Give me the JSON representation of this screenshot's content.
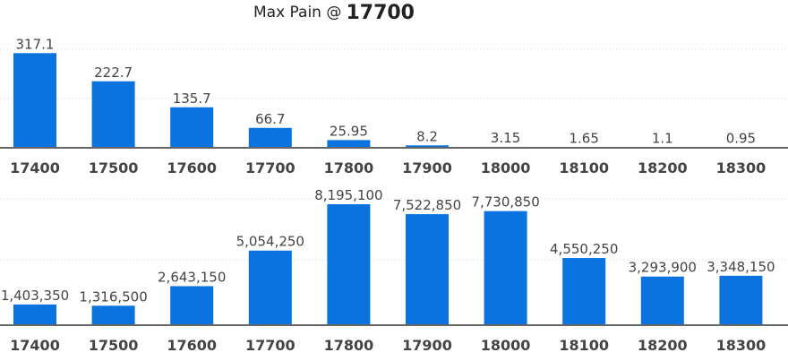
{
  "header": {
    "prefix": "Max Pain @",
    "strike": "17700"
  },
  "chart_data": [
    {
      "type": "bar",
      "title": "Max Pain @ 17700",
      "categories": [
        "17400",
        "17500",
        "17600",
        "17700",
        "17800",
        "17900",
        "18000",
        "18100",
        "18200",
        "18300"
      ],
      "values": [
        317.1,
        222.7,
        135.7,
        66.7,
        25.95,
        8.2,
        3.15,
        1.65,
        1.1,
        0.95
      ],
      "labels": [
        "317.1",
        "222.7",
        "135.7",
        "66.7",
        "25.95",
        "8.2",
        "3.15",
        "1.65",
        "1.1",
        "0.95"
      ],
      "ylim": [
        0,
        450
      ],
      "grid": true,
      "bar_color": "#0b73e0"
    },
    {
      "type": "bar",
      "categories": [
        "17400",
        "17500",
        "17600",
        "17700",
        "17800",
        "17900",
        "18000",
        "18100",
        "18200",
        "18300"
      ],
      "values": [
        1403350,
        1316500,
        2643150,
        5054250,
        8195100,
        7522850,
        7730850,
        4550250,
        3293900,
        3348150
      ],
      "labels": [
        "1,403,350",
        "1,316,500",
        "2,643,150",
        "5,054,250",
        "8,195,100",
        "7,522,850",
        "7,730,850",
        "4,550,250",
        "3,293,900",
        "3,348,150"
      ],
      "ylim": [
        0,
        8195100
      ],
      "grid": true,
      "bar_color": "#0b73e0"
    }
  ]
}
